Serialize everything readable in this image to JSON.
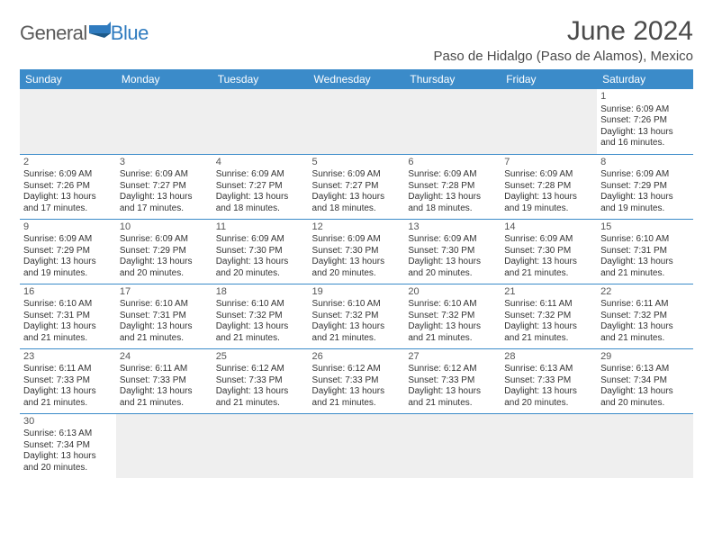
{
  "logo": {
    "part1": "General",
    "part2": "Blue"
  },
  "title": "June 2024",
  "subtitle": "Paso de Hidalgo (Paso de Alamos), Mexico",
  "colors": {
    "header_bg": "#3b8bc9",
    "header_fg": "#ffffff",
    "rule": "#3b8bc9",
    "blank_bg": "#efefef",
    "logo_gray": "#5a5a5a",
    "logo_blue": "#2f7bbf"
  },
  "weekdays": [
    "Sunday",
    "Monday",
    "Tuesday",
    "Wednesday",
    "Thursday",
    "Friday",
    "Saturday"
  ],
  "days": {
    "1": {
      "sunrise": "6:09 AM",
      "sunset": "7:26 PM",
      "daylight": "13 hours and 16 minutes."
    },
    "2": {
      "sunrise": "6:09 AM",
      "sunset": "7:26 PM",
      "daylight": "13 hours and 17 minutes."
    },
    "3": {
      "sunrise": "6:09 AM",
      "sunset": "7:27 PM",
      "daylight": "13 hours and 17 minutes."
    },
    "4": {
      "sunrise": "6:09 AM",
      "sunset": "7:27 PM",
      "daylight": "13 hours and 18 minutes."
    },
    "5": {
      "sunrise": "6:09 AM",
      "sunset": "7:27 PM",
      "daylight": "13 hours and 18 minutes."
    },
    "6": {
      "sunrise": "6:09 AM",
      "sunset": "7:28 PM",
      "daylight": "13 hours and 18 minutes."
    },
    "7": {
      "sunrise": "6:09 AM",
      "sunset": "7:28 PM",
      "daylight": "13 hours and 19 minutes."
    },
    "8": {
      "sunrise": "6:09 AM",
      "sunset": "7:29 PM",
      "daylight": "13 hours and 19 minutes."
    },
    "9": {
      "sunrise": "6:09 AM",
      "sunset": "7:29 PM",
      "daylight": "13 hours and 19 minutes."
    },
    "10": {
      "sunrise": "6:09 AM",
      "sunset": "7:29 PM",
      "daylight": "13 hours and 20 minutes."
    },
    "11": {
      "sunrise": "6:09 AM",
      "sunset": "7:30 PM",
      "daylight": "13 hours and 20 minutes."
    },
    "12": {
      "sunrise": "6:09 AM",
      "sunset": "7:30 PM",
      "daylight": "13 hours and 20 minutes."
    },
    "13": {
      "sunrise": "6:09 AM",
      "sunset": "7:30 PM",
      "daylight": "13 hours and 20 minutes."
    },
    "14": {
      "sunrise": "6:09 AM",
      "sunset": "7:30 PM",
      "daylight": "13 hours and 21 minutes."
    },
    "15": {
      "sunrise": "6:10 AM",
      "sunset": "7:31 PM",
      "daylight": "13 hours and 21 minutes."
    },
    "16": {
      "sunrise": "6:10 AM",
      "sunset": "7:31 PM",
      "daylight": "13 hours and 21 minutes."
    },
    "17": {
      "sunrise": "6:10 AM",
      "sunset": "7:31 PM",
      "daylight": "13 hours and 21 minutes."
    },
    "18": {
      "sunrise": "6:10 AM",
      "sunset": "7:32 PM",
      "daylight": "13 hours and 21 minutes."
    },
    "19": {
      "sunrise": "6:10 AM",
      "sunset": "7:32 PM",
      "daylight": "13 hours and 21 minutes."
    },
    "20": {
      "sunrise": "6:10 AM",
      "sunset": "7:32 PM",
      "daylight": "13 hours and 21 minutes."
    },
    "21": {
      "sunrise": "6:11 AM",
      "sunset": "7:32 PM",
      "daylight": "13 hours and 21 minutes."
    },
    "22": {
      "sunrise": "6:11 AM",
      "sunset": "7:32 PM",
      "daylight": "13 hours and 21 minutes."
    },
    "23": {
      "sunrise": "6:11 AM",
      "sunset": "7:33 PM",
      "daylight": "13 hours and 21 minutes."
    },
    "24": {
      "sunrise": "6:11 AM",
      "sunset": "7:33 PM",
      "daylight": "13 hours and 21 minutes."
    },
    "25": {
      "sunrise": "6:12 AM",
      "sunset": "7:33 PM",
      "daylight": "13 hours and 21 minutes."
    },
    "26": {
      "sunrise": "6:12 AM",
      "sunset": "7:33 PM",
      "daylight": "13 hours and 21 minutes."
    },
    "27": {
      "sunrise": "6:12 AM",
      "sunset": "7:33 PM",
      "daylight": "13 hours and 21 minutes."
    },
    "28": {
      "sunrise": "6:13 AM",
      "sunset": "7:33 PM",
      "daylight": "13 hours and 20 minutes."
    },
    "29": {
      "sunrise": "6:13 AM",
      "sunset": "7:34 PM",
      "daylight": "13 hours and 20 minutes."
    },
    "30": {
      "sunrise": "6:13 AM",
      "sunset": "7:34 PM",
      "daylight": "13 hours and 20 minutes."
    }
  },
  "labels": {
    "sunrise": "Sunrise:",
    "sunset": "Sunset:",
    "daylight": "Daylight:"
  },
  "layout": {
    "first_weekday_index": 6,
    "num_days": 30,
    "cell_fontsize": 10,
    "header_fontsize": 12
  }
}
